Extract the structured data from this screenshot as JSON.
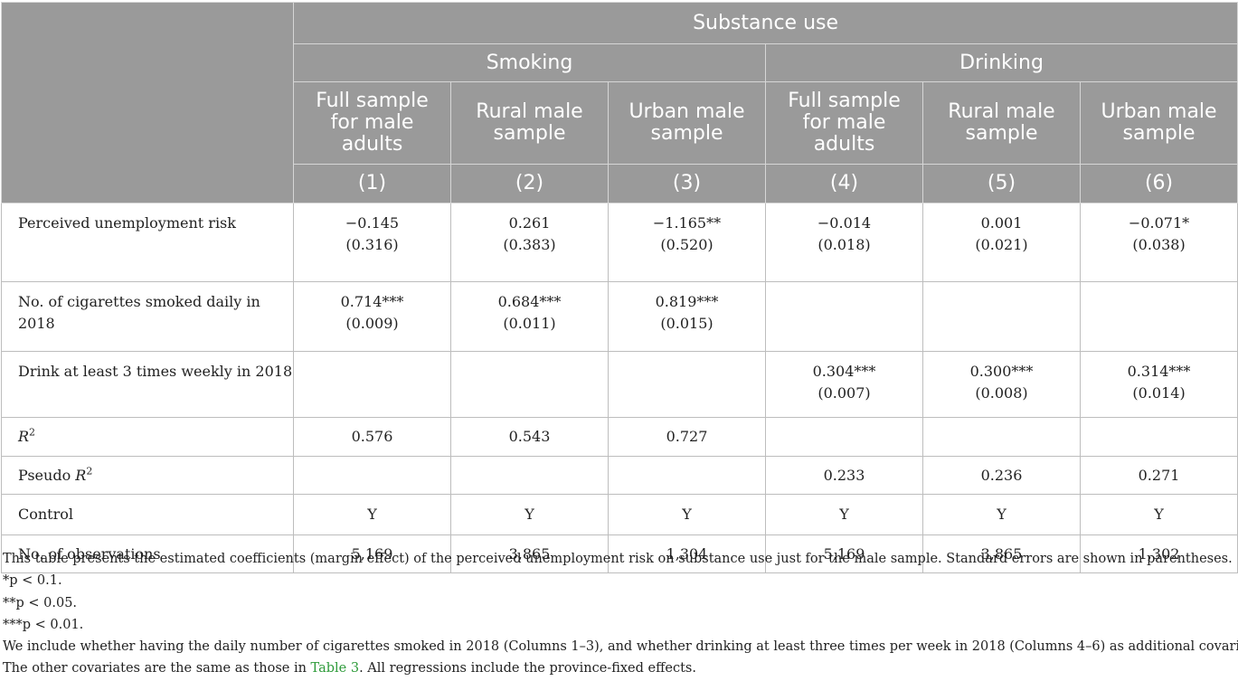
{
  "header": {
    "top": "Substance use",
    "groups": [
      "Smoking",
      "Drinking"
    ],
    "columns": [
      [
        "Full sample",
        "for male",
        "adults"
      ],
      [
        "Rural male",
        "sample"
      ],
      [
        "Urban male",
        "sample"
      ],
      [
        "Full sample",
        "for male",
        "adults"
      ],
      [
        "Rural male",
        "sample"
      ],
      [
        "Urban male",
        "sample"
      ]
    ],
    "numbers": [
      "(1)",
      "(2)",
      "(3)",
      "(4)",
      "(5)",
      "(6)"
    ]
  },
  "rows": [
    {
      "label": "Perceived unemployment risk",
      "coef": [
        "−0.145",
        "0.261",
        "−1.165**",
        "−0.014",
        "0.001",
        "−0.071*"
      ],
      "se": [
        "(0.316)",
        "(0.383)",
        "(0.520)",
        "(0.018)",
        "(0.021)",
        "(0.038)"
      ]
    },
    {
      "label_lines": [
        "No. of cigarettes smoked daily in",
        "2018"
      ],
      "coef": [
        "0.714***",
        "0.684***",
        "0.819***",
        "",
        "",
        ""
      ],
      "se": [
        "(0.009)",
        "(0.011)",
        "(0.015)",
        "",
        "",
        ""
      ]
    },
    {
      "label": "Drink at least 3 times weekly in 2018",
      "coef": [
        "",
        "",
        "",
        "0.304***",
        "0.300***",
        "0.314***"
      ],
      "se": [
        "",
        "",
        "",
        "(0.007)",
        "(0.008)",
        "(0.014)"
      ]
    },
    {
      "label_var": "R",
      "label_sup": "2",
      "values": [
        "0.576",
        "0.543",
        "0.727",
        "",
        "",
        ""
      ]
    },
    {
      "label_prefix": "Pseudo ",
      "label_var": "R",
      "label_sup": "2",
      "values": [
        "",
        "",
        "",
        "0.233",
        "0.236",
        "0.271"
      ]
    },
    {
      "label": "Control",
      "values": [
        "Y",
        "Y",
        "Y",
        "Y",
        "Y",
        "Y"
      ]
    },
    {
      "label": "No. of observations",
      "values": [
        "5,169",
        "3,865",
        "1,304",
        "5,169",
        "3,865",
        "1,302"
      ]
    }
  ],
  "notes": {
    "line1": "This table presents the estimated coefficients (margin effect) of the perceived unemployment risk on substance use just for the male sample. Standard errors are shown in parentheses.",
    "sig1": "*p < 0.1.",
    "sig2": "**p < 0.05.",
    "sig3": "***p < 0.01.",
    "line5": "We include whether having the daily number of cigarettes smoked in 2018 (Columns 1–3), and whether drinking at least three times per week in 2018 (Columns 4–6) as additional covariates.",
    "line6_pre": "The other covariates are the same as those in ",
    "line6_link": "Table 3",
    "line6_post": ". All regressions include the province-fixed effects."
  }
}
